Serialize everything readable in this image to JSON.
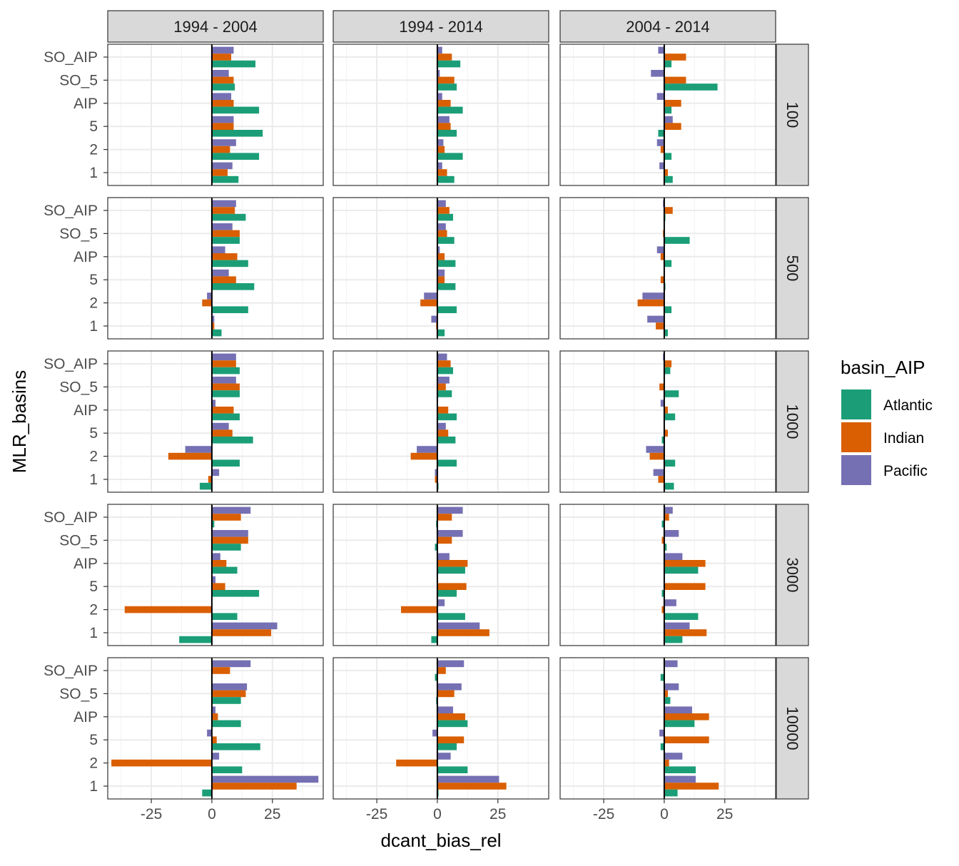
{
  "chart_data": {
    "type": "bar",
    "orientation": "horizontal",
    "layout": "facet_grid",
    "xlabel": "dcant_bias_rel",
    "ylabel": "MLR_basins",
    "xlim": [
      -43,
      46
    ],
    "xticks": [
      -25,
      0,
      25
    ],
    "xtick_labels": [
      "-25",
      "0",
      "25"
    ],
    "categories": [
      "SO_AIP",
      "SO_5",
      "AIP",
      "5",
      "2",
      "1"
    ],
    "col_facets": [
      "1994 - 2004",
      "1994 - 2014",
      "2004 - 2014"
    ],
    "row_facets": [
      "100",
      "500",
      "1000",
      "3000",
      "10000"
    ],
    "grid": true,
    "legend": {
      "title": "basin_AIP",
      "position": "right",
      "entries": [
        {
          "name": "Atlantic",
          "color": "#1b9e77"
        },
        {
          "name": "Indian",
          "color": "#d95f02"
        },
        {
          "name": "Pacific",
          "color": "#7570b3"
        }
      ]
    },
    "series_order": [
      "Pacific",
      "Indian",
      "Atlantic"
    ],
    "panels": [
      {
        "col": "1994 - 2004",
        "row": "100",
        "values": {
          "Pacific": [
            9,
            7,
            8,
            9,
            10,
            8.5
          ],
          "Indian": [
            8,
            9,
            9,
            9,
            7.5,
            6.5
          ],
          "Atlantic": [
            18,
            9.5,
            19.5,
            21,
            19.5,
            11
          ]
        }
      },
      {
        "col": "1994 - 2014",
        "row": "100",
        "values": {
          "Pacific": [
            2,
            1,
            2,
            5,
            2.5,
            2
          ],
          "Indian": [
            6,
            7,
            5.5,
            5.5,
            3,
            4
          ],
          "Atlantic": [
            9.5,
            8,
            10.5,
            8,
            10.5,
            7
          ]
        }
      },
      {
        "col": "2004 - 2014",
        "row": "100",
        "values": {
          "Pacific": [
            -2.5,
            -5.5,
            -3,
            3.5,
            -3,
            -2
          ],
          "Indian": [
            9,
            9,
            7,
            7,
            -1.5,
            1.5
          ],
          "Atlantic": [
            3,
            22,
            3,
            -2.5,
            3,
            3.5
          ]
        }
      },
      {
        "col": "1994 - 2004",
        "row": "500",
        "values": {
          "Pacific": [
            10,
            8.5,
            5.5,
            7,
            -2,
            1
          ],
          "Indian": [
            9.5,
            11.5,
            10.5,
            10,
            -4,
            1
          ],
          "Atlantic": [
            14,
            11.5,
            15,
            17.5,
            15,
            4
          ]
        }
      },
      {
        "col": "1994 - 2014",
        "row": "500",
        "values": {
          "Pacific": [
            3.5,
            3.5,
            1,
            3,
            -5.5,
            -2.5
          ],
          "Indian": [
            5,
            4,
            3,
            3,
            -7,
            -0.5
          ],
          "Atlantic": [
            6.5,
            7,
            7.5,
            7.5,
            8,
            3
          ]
        }
      },
      {
        "col": "2004 - 2014",
        "row": "500",
        "values": {
          "Pacific": [
            -0.5,
            0,
            -3,
            0,
            -9,
            -7
          ],
          "Indian": [
            3.5,
            -0.5,
            -1.5,
            -1.5,
            -11,
            -3.5
          ],
          "Atlantic": [
            0.5,
            10.5,
            3,
            0.5,
            3,
            1.5
          ]
        }
      },
      {
        "col": "1994 - 2004",
        "row": "1000",
        "values": {
          "Pacific": [
            10,
            10,
            1.5,
            7,
            -11,
            3
          ],
          "Indian": [
            10,
            11.5,
            9,
            8.5,
            -18,
            -1.5
          ],
          "Atlantic": [
            11.5,
            11.5,
            11.5,
            17,
            11.5,
            -5
          ]
        }
      },
      {
        "col": "1994 - 2014",
        "row": "1000",
        "values": {
          "Pacific": [
            4,
            5,
            0,
            3.5,
            -8.5,
            -1
          ],
          "Indian": [
            5.5,
            3.5,
            4.5,
            4.5,
            -11,
            -1
          ],
          "Atlantic": [
            6.5,
            6,
            8,
            7.5,
            8,
            0.5
          ]
        }
      },
      {
        "col": "2004 - 2014",
        "row": "1000",
        "values": {
          "Pacific": [
            -0.5,
            0,
            -1.5,
            0,
            -7.5,
            -4.5
          ],
          "Indian": [
            3,
            -2,
            1.5,
            1.5,
            -6,
            -2.5
          ],
          "Atlantic": [
            2.5,
            6,
            4.5,
            -1,
            4.5,
            4
          ]
        }
      },
      {
        "col": "1994 - 2004",
        "row": "3000",
        "values": {
          "Pacific": [
            16,
            15,
            3.5,
            1.5,
            0,
            27
          ],
          "Indian": [
            12,
            15,
            6,
            5.5,
            -36,
            24.5
          ],
          "Atlantic": [
            1,
            12,
            10.5,
            19.5,
            10.5,
            -13.5
          ]
        }
      },
      {
        "col": "1994 - 2014",
        "row": "3000",
        "values": {
          "Pacific": [
            10.5,
            10.5,
            5,
            0,
            3,
            17.5
          ],
          "Indian": [
            6,
            6,
            12.5,
            12,
            -15,
            21.5
          ],
          "Atlantic": [
            -0.5,
            -1,
            11.5,
            8,
            11.5,
            -2.5
          ]
        }
      },
      {
        "col": "2004 - 2014",
        "row": "3000",
        "values": {
          "Pacific": [
            3.5,
            6,
            7.5,
            0,
            5,
            10.5
          ],
          "Indian": [
            2,
            -1,
            17,
            17,
            -1,
            17.5
          ],
          "Atlantic": [
            -1,
            1,
            14,
            -1,
            14,
            7.5
          ]
        }
      },
      {
        "col": "1994 - 2004",
        "row": "10000",
        "values": {
          "Pacific": [
            16,
            14.5,
            1.5,
            -2,
            3,
            44
          ],
          "Indian": [
            7.5,
            14,
            2.5,
            2,
            -41.5,
            35
          ],
          "Atlantic": [
            0,
            12,
            12,
            20,
            12.5,
            -4
          ]
        }
      },
      {
        "col": "1994 - 2014",
        "row": "10000",
        "values": {
          "Pacific": [
            11,
            10,
            6.5,
            -2,
            5.5,
            25.5
          ],
          "Indian": [
            3.5,
            7,
            11.5,
            11,
            -17,
            28.5
          ],
          "Atlantic": [
            -1,
            -0.5,
            12.5,
            8,
            12.5,
            0.5
          ]
        }
      },
      {
        "col": "2004 - 2014",
        "row": "10000",
        "values": {
          "Pacific": [
            5.5,
            6,
            11.5,
            -2,
            7.5,
            13
          ],
          "Indian": [
            0,
            1.5,
            18.5,
            18.5,
            2,
            22.5
          ],
          "Atlantic": [
            -1.5,
            2.5,
            12.5,
            -1.5,
            13,
            5.5
          ]
        }
      }
    ]
  }
}
